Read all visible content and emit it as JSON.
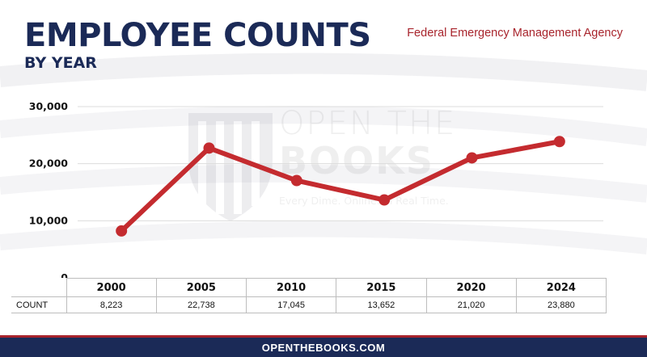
{
  "header": {
    "title": "EMPLOYEE COUNTS",
    "subtitle": "BY YEAR",
    "agency": "Federal Emergency Management Agency"
  },
  "watermark": {
    "line1": "OPEN THE",
    "line2": "BOOKS",
    "tagline": "Every Dime. Online. In Real Time."
  },
  "table": {
    "row_label": "COUNT"
  },
  "footer": {
    "url": "OPENTHEBOOKS.COM"
  },
  "colors": {
    "navy": "#1b2a57",
    "accent_red": "#a8242c",
    "line": "#c42b2f"
  },
  "chart_data": {
    "type": "line",
    "title": "EMPLOYEE COUNTS",
    "subtitle": "BY YEAR",
    "categories": [
      "2000",
      "2005",
      "2010",
      "2015",
      "2020",
      "2024"
    ],
    "series": [
      {
        "values": [
          8223,
          22738,
          17045,
          13652,
          21020,
          23880
        ]
      }
    ],
    "value_labels": [
      "8,223",
      "22,738",
      "17,045",
      "13,652",
      "21,020",
      "23,880"
    ],
    "y_ticks": [
      0,
      10000,
      20000,
      30000
    ],
    "y_tick_labels": [
      "0",
      "10,000",
      "20,000",
      "30,000"
    ],
    "ylim": [
      0,
      30000
    ],
    "grid": true,
    "legend": "none"
  }
}
